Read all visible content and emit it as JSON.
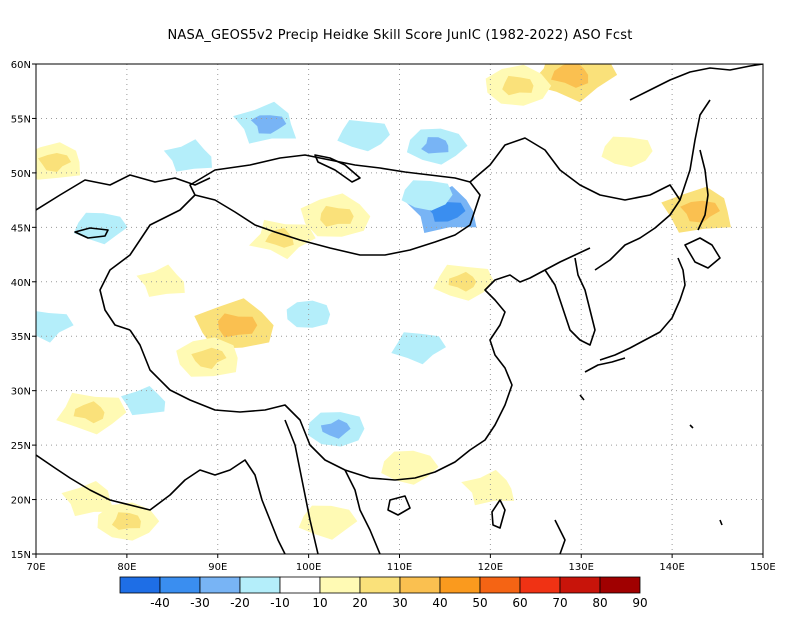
{
  "title": "NASA_GEOS5v2 Precip Heidke Skill Score JunIC (1982-2022) ASO Fcst",
  "map": {
    "lon_range": [
      70,
      150
    ],
    "lat_range": [
      15,
      60
    ],
    "lon_ticks": [
      "70E",
      "80E",
      "90E",
      "100E",
      "110E",
      "120E",
      "130E",
      "140E",
      "150E"
    ],
    "lat_ticks": [
      "15N",
      "20N",
      "25N",
      "30N",
      "35N",
      "40N",
      "45N",
      "50N",
      "55N",
      "60N"
    ],
    "gridlines": true,
    "contour_features": [
      {
        "lon": 95.5,
        "lat": 54.5,
        "value": -25
      },
      {
        "lon": 106,
        "lat": 53.5,
        "value": -15
      },
      {
        "lon": 114,
        "lat": 52.5,
        "value": -20
      },
      {
        "lon": 115,
        "lat": 46.5,
        "value": -30
      },
      {
        "lon": 113,
        "lat": 48,
        "value": -15
      },
      {
        "lon": 77,
        "lat": 45,
        "value": -15
      },
      {
        "lon": 87,
        "lat": 51.5,
        "value": -15
      },
      {
        "lon": 103,
        "lat": 26.5,
        "value": -20
      },
      {
        "lon": 112,
        "lat": 34,
        "value": -15
      },
      {
        "lon": 82,
        "lat": 29,
        "value": -12
      },
      {
        "lon": 100,
        "lat": 37,
        "value": -12
      },
      {
        "lon": 71,
        "lat": 36,
        "value": -15
      },
      {
        "lon": 92,
        "lat": 36,
        "value": 35
      },
      {
        "lon": 89,
        "lat": 33,
        "value": 25
      },
      {
        "lon": 97,
        "lat": 44,
        "value": 22
      },
      {
        "lon": 103,
        "lat": 46,
        "value": 28
      },
      {
        "lon": 72,
        "lat": 51,
        "value": 22
      },
      {
        "lon": 129,
        "lat": 59,
        "value": 35
      },
      {
        "lon": 123,
        "lat": 58,
        "value": 25
      },
      {
        "lon": 143,
        "lat": 46.5,
        "value": 30
      },
      {
        "lon": 76,
        "lat": 28,
        "value": 25
      },
      {
        "lon": 80,
        "lat": 18,
        "value": 22
      },
      {
        "lon": 76,
        "lat": 20,
        "value": 18
      },
      {
        "lon": 117,
        "lat": 40,
        "value": 20
      },
      {
        "lon": 111,
        "lat": 23,
        "value": 18
      },
      {
        "lon": 120,
        "lat": 21,
        "value": 18
      },
      {
        "lon": 135,
        "lat": 52,
        "value": 15
      },
      {
        "lon": 102,
        "lat": 18,
        "value": 18
      },
      {
        "lon": 84,
        "lat": 40,
        "value": 15
      }
    ]
  },
  "colorbar": {
    "labels": [
      "-40",
      "-30",
      "-20",
      "-10",
      "10",
      "20",
      "30",
      "40",
      "50",
      "60",
      "70",
      "80",
      "90"
    ],
    "colors": [
      "#1e6ee6",
      "#3a8ef0",
      "#78b4f5",
      "#b4eefa",
      "#ffffff",
      "#fffab4",
      "#fae17a",
      "#fac050",
      "#fa9a1e",
      "#f56414",
      "#f03214",
      "#c8140a",
      "#a00000"
    ]
  },
  "chart_data": {
    "type": "heatmap",
    "title": "NASA_GEOS5v2 Precip Heidke Skill Score JunIC (1982-2022) ASO Fcst",
    "xlabel": "",
    "ylabel": "",
    "x_range": [
      70,
      150
    ],
    "y_range": [
      15,
      60
    ],
    "color_levels": [
      -40,
      -30,
      -20,
      -10,
      10,
      20,
      30,
      40,
      50,
      60,
      70,
      80,
      90
    ],
    "grid": true
  }
}
